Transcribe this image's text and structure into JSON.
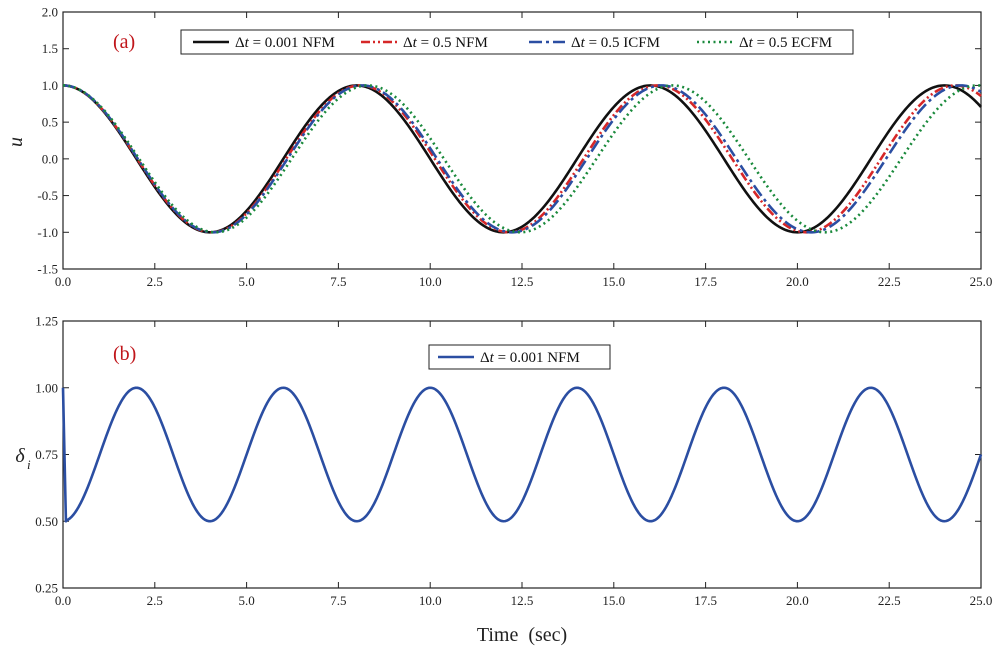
{
  "chart_data": [
    {
      "type": "line",
      "panel_label": "(a)",
      "ylabel": "u",
      "xlim": [
        0,
        25
      ],
      "ylim": [
        -1.5,
        2.0
      ],
      "x_ticks": [
        "0.0",
        "2.5",
        "5.0",
        "7.5",
        "10.0",
        "12.5",
        "15.0",
        "17.5",
        "20.0",
        "22.5",
        "25.0"
      ],
      "y_ticks": [
        "-1.5",
        "-1.0",
        "-0.5",
        "0.0",
        "0.5",
        "1.0",
        "1.5",
        "2.0"
      ],
      "grid": false,
      "legend_placement": "top",
      "legend_entries": [
        {
          "prefix": "Δ",
          "t": "t",
          "rest": " = 0.001 NFM"
        },
        {
          "prefix": "Δ",
          "t": "t",
          "rest": " = 0.5 NFM"
        },
        {
          "prefix": "Δ",
          "t": "t",
          "rest": " = 0.5 ICFM"
        },
        {
          "prefix": "Δ",
          "t": "t",
          "rest": " = 0.5 ECFM"
        }
      ],
      "series": [
        {
          "color": "#111111",
          "dash": "solid",
          "period": 8.0,
          "x": [
            0,
            1,
            2,
            3,
            4,
            5,
            6,
            7,
            8,
            9,
            10,
            11,
            12,
            13,
            14,
            15,
            16,
            17,
            18,
            19,
            20,
            21,
            22,
            23,
            24,
            25
          ],
          "values": [
            1.0,
            0.71,
            0.0,
            -0.71,
            -1.0,
            -0.71,
            0.0,
            0.71,
            1.0,
            0.71,
            0.0,
            -0.71,
            -1.0,
            -0.71,
            0.0,
            0.71,
            1.0,
            0.71,
            0.0,
            -0.71,
            -1.0,
            -0.71,
            0.0,
            0.71,
            1.0,
            0.71
          ]
        },
        {
          "color": "#d62728",
          "dash": "dashdotdot",
          "period": 8.1,
          "x": [
            0,
            1,
            2,
            3,
            4,
            5,
            6,
            7,
            8,
            9,
            10,
            11,
            12,
            13,
            14,
            15,
            16,
            17,
            18,
            19,
            20,
            21,
            22,
            23,
            24,
            25
          ],
          "values": [
            1.0,
            0.71,
            0.02,
            -0.69,
            -1.0,
            -0.73,
            -0.04,
            0.68,
            1.0,
            0.74,
            0.06,
            -0.66,
            -1.0,
            -0.76,
            -0.09,
            0.64,
            1.0,
            0.78,
            0.12,
            -0.61,
            -0.99,
            -0.8,
            -0.15,
            0.59,
            0.99,
            0.82
          ]
        },
        {
          "color": "#2b4ea2",
          "dash": "longdashdot",
          "period": 8.15,
          "x": [
            0,
            1,
            2,
            3,
            4,
            5,
            6,
            7,
            8,
            9,
            10,
            11,
            12,
            13,
            14,
            15,
            16,
            17,
            18,
            19,
            20,
            21,
            22,
            23,
            24,
            25
          ],
          "values": [
            1.0,
            0.72,
            0.03,
            -0.68,
            -1.0,
            -0.74,
            -0.06,
            0.66,
            1.0,
            0.76,
            0.09,
            -0.64,
            -1.0,
            -0.78,
            -0.12,
            0.61,
            0.99,
            0.8,
            0.16,
            -0.58,
            -0.99,
            -0.82,
            -0.19,
            0.55,
            0.98,
            0.85
          ]
        },
        {
          "color": "#1a8a3c",
          "dash": "dotted",
          "period": 8.3,
          "x": [
            0,
            1,
            2,
            3,
            4,
            5,
            6,
            7,
            8,
            9,
            10,
            11,
            12,
            13,
            14,
            15,
            16,
            17,
            18,
            19,
            20,
            21,
            22,
            23,
            24,
            25
          ],
          "values": [
            1.0,
            0.72,
            0.06,
            -0.65,
            -1.0,
            -0.76,
            -0.13,
            0.59,
            0.99,
            0.81,
            0.2,
            -0.53,
            -0.98,
            -0.85,
            -0.27,
            0.47,
            0.96,
            0.89,
            0.34,
            -0.41,
            -0.94,
            -0.92,
            -0.4,
            0.35,
            0.91,
            0.95
          ]
        }
      ]
    },
    {
      "type": "line",
      "panel_label": "(b)",
      "ylabel_symbol": "δ",
      "ylabel_subscript": "i",
      "xlabel": "Time  (sec)",
      "xlim": [
        0,
        25
      ],
      "ylim": [
        0.25,
        1.25
      ],
      "x_ticks": [
        "0.0",
        "2.5",
        "5.0",
        "7.5",
        "10.0",
        "12.5",
        "15.0",
        "17.5",
        "20.0",
        "22.5",
        "25.0"
      ],
      "y_ticks": [
        "0.25",
        "0.50",
        "0.75",
        "1.00",
        "1.25"
      ],
      "grid": false,
      "legend_placement": "top",
      "legend_entries": [
        {
          "prefix": "Δ",
          "t": "t",
          "rest": " = 0.001 NFM"
        }
      ],
      "series": [
        {
          "color": "#2b4ea2",
          "dash": "solid",
          "period": 4.0,
          "x": [
            0,
            0.1,
            1,
            2,
            3,
            4,
            5,
            6,
            7,
            8,
            9,
            10,
            11,
            12,
            13,
            14,
            15,
            16,
            17,
            18,
            19,
            20,
            21,
            22,
            23,
            24,
            25
          ],
          "values": [
            1.0,
            0.5,
            0.75,
            1.0,
            0.75,
            0.5,
            0.75,
            1.0,
            0.75,
            0.5,
            0.75,
            1.0,
            0.75,
            0.5,
            0.75,
            1.0,
            0.75,
            0.5,
            0.75,
            1.0,
            0.75,
            0.5,
            0.75,
            1.0,
            0.75,
            0.5,
            0.71
          ]
        }
      ]
    }
  ],
  "colors": {
    "panel_tag": "#c0161b",
    "frame": "#222222"
  }
}
